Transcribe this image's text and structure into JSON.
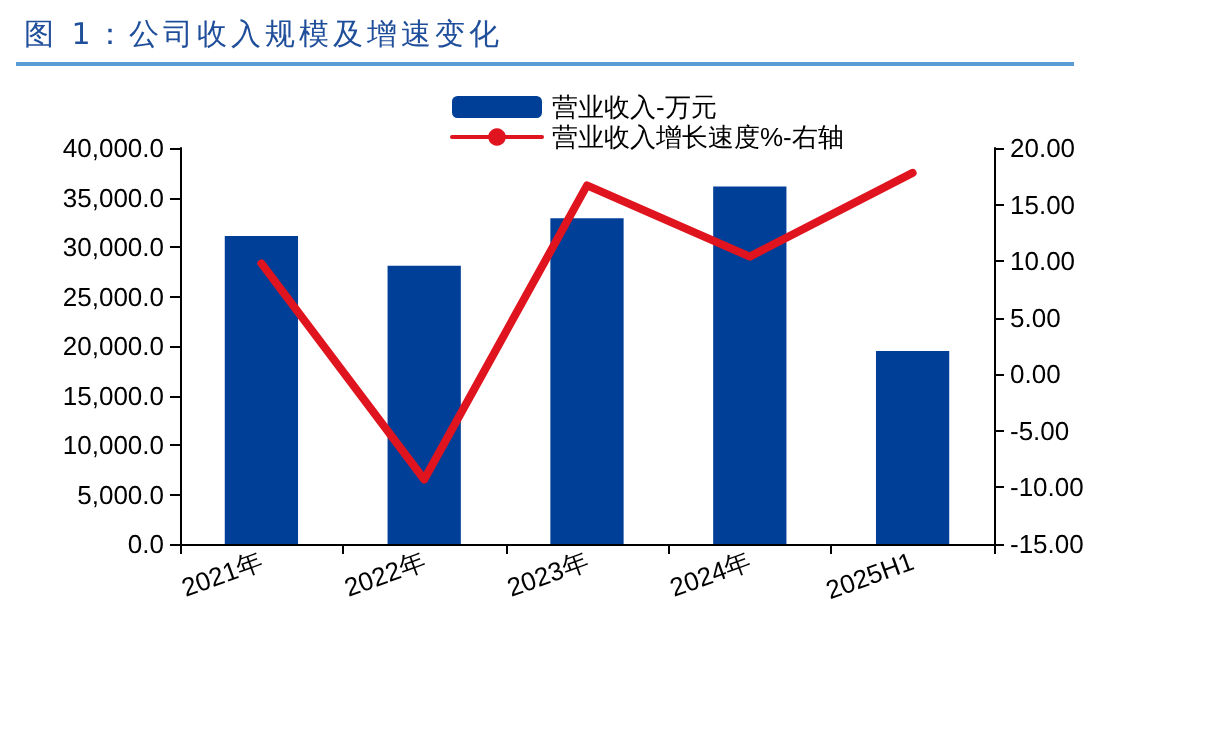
{
  "chart_data": {
    "type": "bar",
    "title": "图 1：公司收入规模及增速变化",
    "categories": [
      "2021年",
      "2022年",
      "2023年",
      "2024年",
      "2025H1"
    ],
    "series": [
      {
        "name": "营业收入-万元",
        "color": "#003f98",
        "values": [
          31100,
          28100,
          32900,
          36100,
          19500
        ]
      },
      {
        "name": "营业收入增长速度%-右轴",
        "color": "#e0141e",
        "type": "line",
        "axis": "y2",
        "values": [
          9.8,
          -9.3,
          16.7,
          10.4,
          17.8
        ]
      }
    ],
    "ylim": [
      0,
      40000
    ],
    "yticks": [
      {
        "value": 0,
        "label": "0.0"
      },
      {
        "value": 5000,
        "label": "5,000.0"
      },
      {
        "value": 10000,
        "label": "10,000.0"
      },
      {
        "value": 15000,
        "label": "15,000.0"
      },
      {
        "value": 20000,
        "label": "20,000.0"
      },
      {
        "value": 25000,
        "label": "25,000.0"
      },
      {
        "value": 30000,
        "label": "30,000.0"
      },
      {
        "value": 35000,
        "label": "35,000.0"
      },
      {
        "value": 40000,
        "label": "40,000.0"
      }
    ],
    "y2lim": [
      -15,
      20
    ],
    "y2ticks": [
      {
        "value": -15,
        "label": "-15.00"
      },
      {
        "value": -10,
        "label": "-10.00"
      },
      {
        "value": -5,
        "label": "-5.00"
      },
      {
        "value": 0,
        "label": "0.00"
      },
      {
        "value": 5,
        "label": "5.00"
      },
      {
        "value": 10,
        "label": "10.00"
      },
      {
        "value": 15,
        "label": "15.00"
      },
      {
        "value": 20,
        "label": "20.00"
      }
    ],
    "grid": false,
    "legend": "top",
    "marker": "none"
  }
}
